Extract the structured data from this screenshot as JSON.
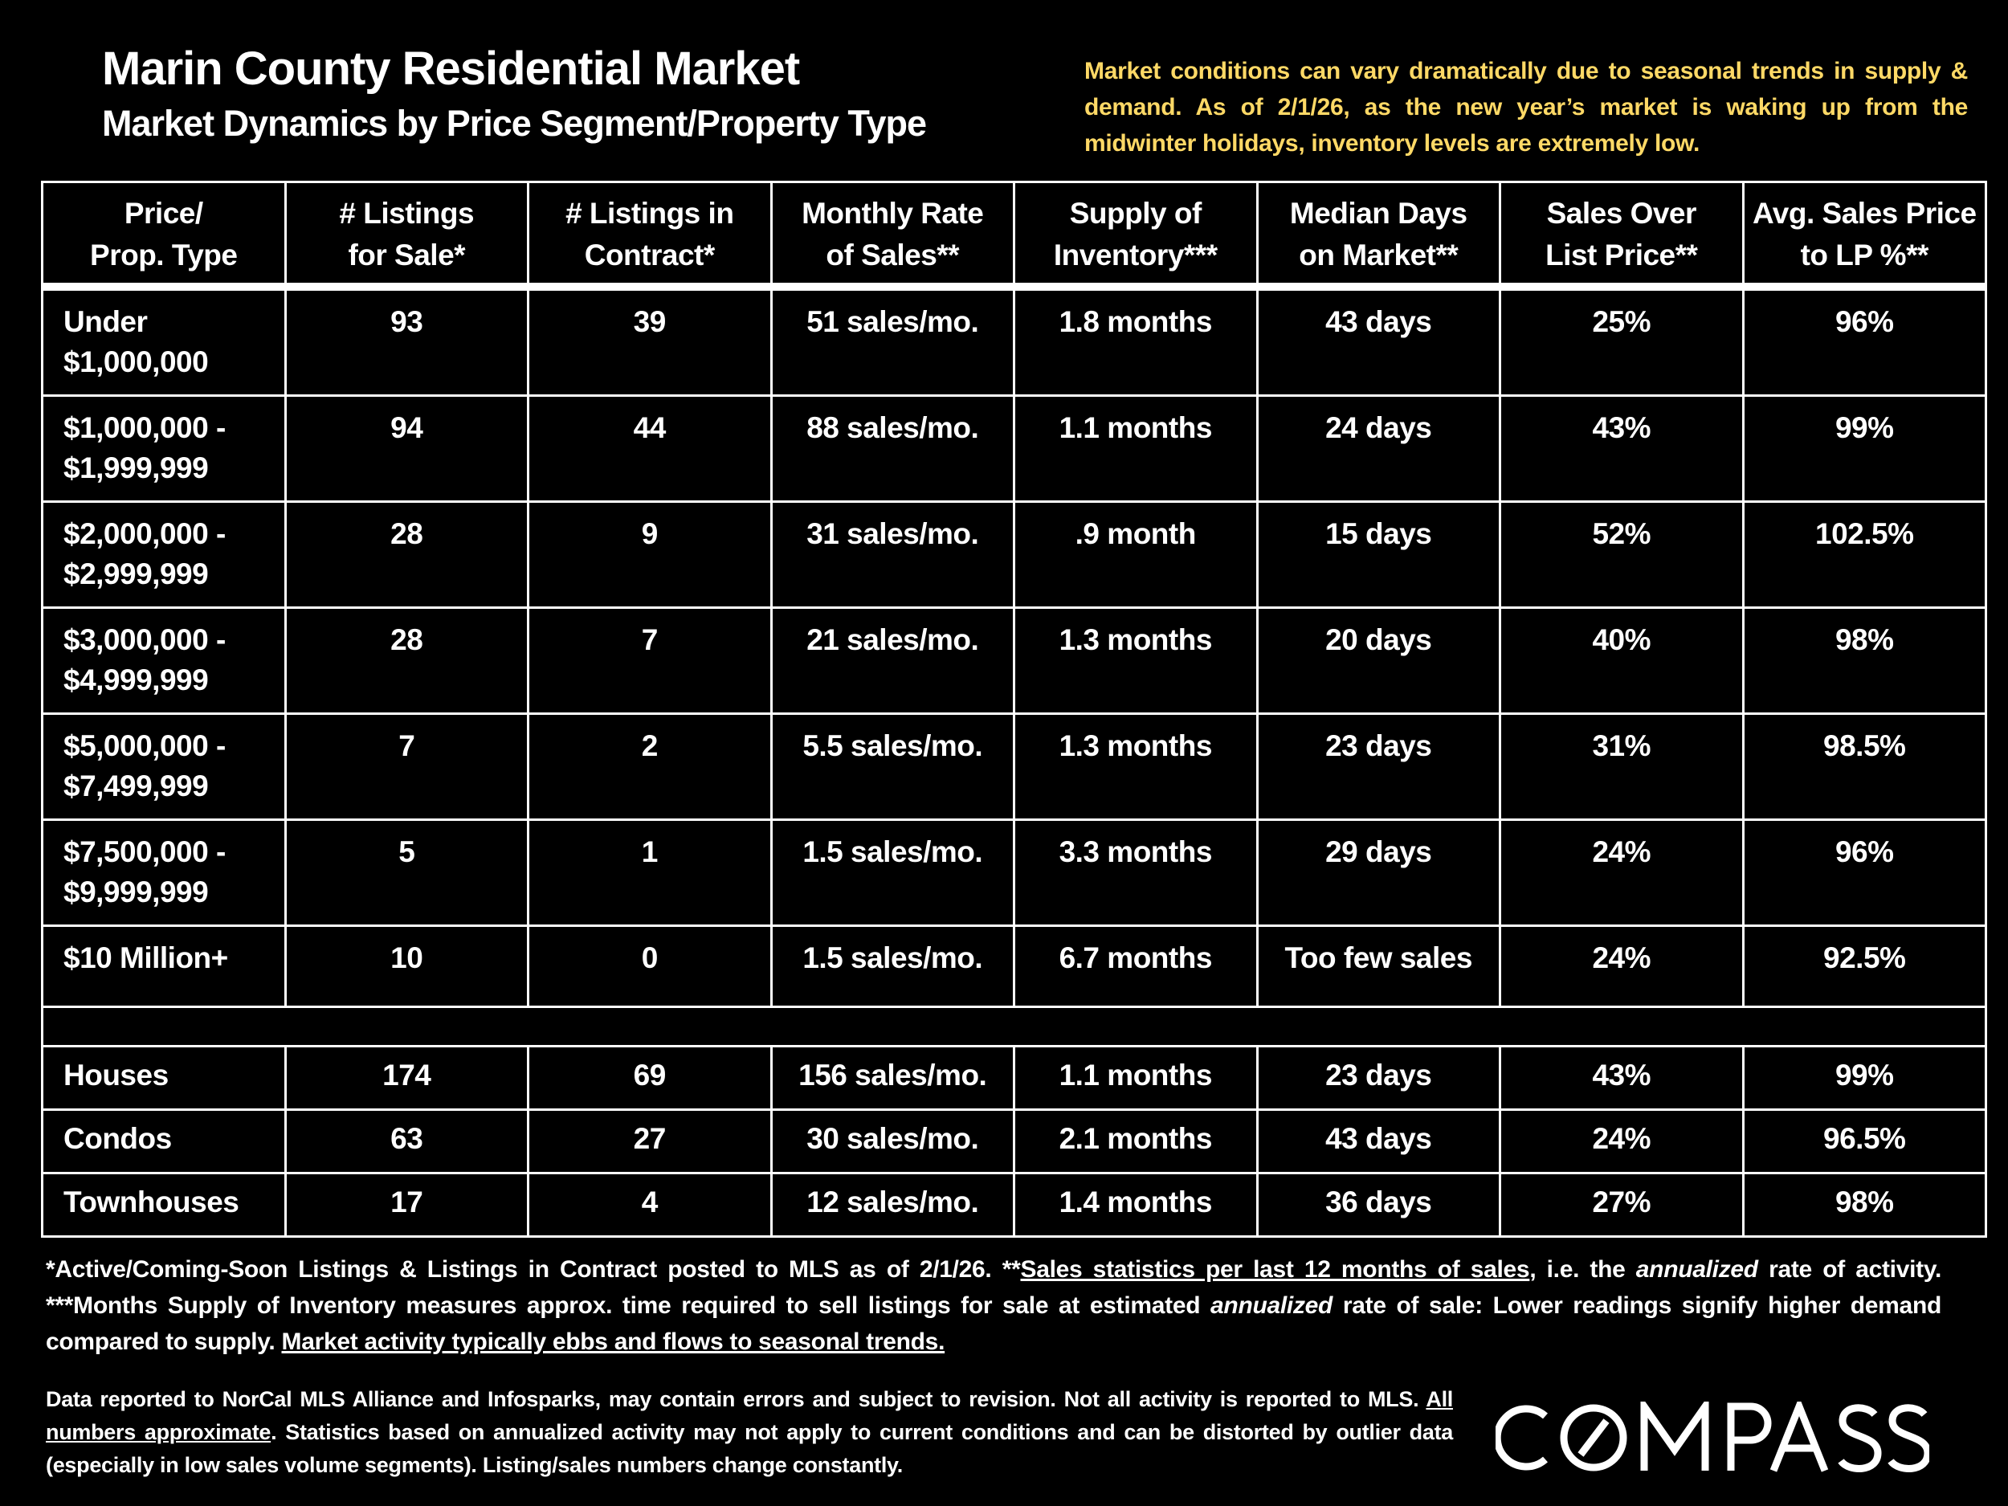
{
  "header": {
    "title": "Marin County Residential Market",
    "subtitle": "Market Dynamics by Price Segment/Property Type",
    "note": "Market conditions can vary dramatically due to seasonal trends in supply & demand. As of 2/1/26, as the new year’s market is waking up from the midwinter holidays, inventory levels are extremely low.",
    "note_color": "#FFD966"
  },
  "table": {
    "columns": [
      [
        "Price/",
        "Prop. Type"
      ],
      [
        "# Listings",
        "for Sale*"
      ],
      [
        "# Listings in",
        "Contract*"
      ],
      [
        "Monthly Rate",
        "of Sales**"
      ],
      [
        "Supply of",
        "Inventory***"
      ],
      [
        "Median Days",
        "on Market**"
      ],
      [
        "Sales Over",
        "List Price**"
      ],
      [
        "Avg. Sales Price",
        "to LP %**"
      ]
    ],
    "segments": [
      {
        "label": [
          "Under",
          "$1,000,000"
        ],
        "cells": [
          "93",
          "39",
          "51 sales/mo.",
          "1.8 months",
          "43 days",
          "25%",
          "96%"
        ]
      },
      {
        "label": [
          "$1,000,000 -",
          "$1,999,999"
        ],
        "cells": [
          "94",
          "44",
          "88 sales/mo.",
          "1.1 months",
          "24 days",
          "43%",
          "99%"
        ]
      },
      {
        "label": [
          "$2,000,000 -",
          "$2,999,999"
        ],
        "cells": [
          "28",
          "9",
          "31 sales/mo.",
          ".9 month",
          "15 days",
          "52%",
          "102.5%"
        ]
      },
      {
        "label": [
          "$3,000,000 -",
          "$4,999,999"
        ],
        "cells": [
          "28",
          "7",
          "21 sales/mo.",
          "1.3 months",
          "20 days",
          "40%",
          "98%"
        ]
      },
      {
        "label": [
          "$5,000,000 -",
          "$7,499,999"
        ],
        "cells": [
          "7",
          "2",
          "5.5 sales/mo.",
          "1.3 months",
          "23 days",
          "31%",
          "98.5%"
        ]
      },
      {
        "label": [
          "$7,500,000 -",
          "$9,999,999"
        ],
        "cells": [
          "5",
          "1",
          "1.5 sales/mo.",
          "3.3 months",
          "29 days",
          "24%",
          "96%"
        ]
      },
      {
        "label": [
          "$10 Million+"
        ],
        "cells": [
          "10",
          "0",
          "1.5 sales/mo.",
          "6.7 months",
          "Too few sales",
          "24%",
          "92.5%"
        ]
      }
    ],
    "types": [
      {
        "label": "Houses",
        "cells": [
          "174",
          "69",
          "156 sales/mo.",
          "1.1 months",
          "23 days",
          "43%",
          "99%"
        ]
      },
      {
        "label": "Condos",
        "cells": [
          "63",
          "27",
          "30 sales/mo.",
          "2.1 months",
          "43 days",
          "24%",
          "96.5%"
        ]
      },
      {
        "label": "Townhouses",
        "cells": [
          "17",
          "4",
          "12 sales/mo.",
          "1.4 months",
          "36 days",
          "27%",
          "98%"
        ]
      }
    ]
  },
  "footnotes": {
    "f1": "*Active/Coming-Soon Listings & Listings in Contract posted to MLS as of 2/1/26. **",
    "f1_underlined": "Sales statistics per last 12 months of sales",
    "f1b": ", i.e. the ",
    "f1_italic": "annualized",
    "f2": " rate of activity.  ***Months Supply of Inventory measures approx. time required to sell listings for sale at estimated ",
    "f2_italic": "annualized",
    "f3": " rate of sale:  Lower readings signify higher demand compared to supply. ",
    "f3_underlined": "Market activity typically ebbs and flows to seasonal trends.",
    "d1": "Data reported to NorCal MLS Alliance and Infosparks, may contain errors and subject to revision.  Not all activity is reported to MLS. ",
    "d1_underlined": "All numbers approximate",
    "d2": ". Statistics based on annualized activity may not apply to current conditions and can be distorted by outlier data (especially in low sales volume segments). Listing/sales numbers change constantly."
  },
  "logo": {
    "text": "COMPASS"
  }
}
